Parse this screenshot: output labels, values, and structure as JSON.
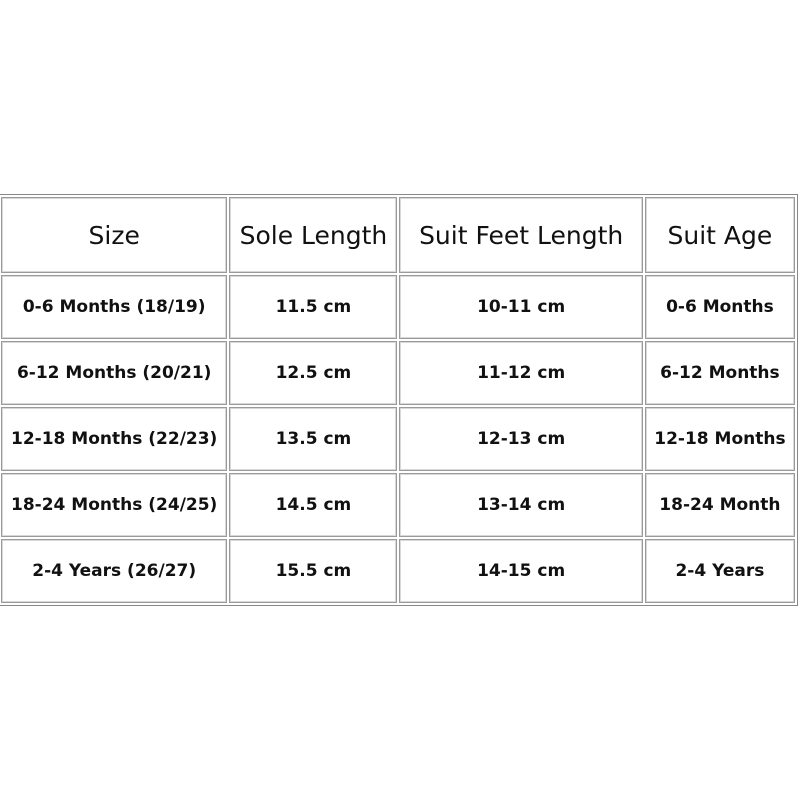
{
  "table": {
    "headers": [
      "Size",
      "Sole Length",
      "Suit Feet Length",
      "Suit Age"
    ],
    "rows": [
      [
        "0-6 Months (18/19)",
        "11.5 cm",
        "10-11 cm",
        "0-6 Months"
      ],
      [
        "6-12 Months (20/21)",
        "12.5 cm",
        "11-12 cm",
        "6-12 Months"
      ],
      [
        "12-18 Months (22/23)",
        "13.5 cm",
        "12-13 cm",
        "12-18 Months"
      ],
      [
        "18-24 Months (24/25)",
        "14.5 cm",
        "13-14 cm",
        "18-24 Month"
      ],
      [
        "2-4 Years (26/27)",
        "15.5 cm",
        "14-15 cm",
        "2-4 Years"
      ]
    ]
  }
}
